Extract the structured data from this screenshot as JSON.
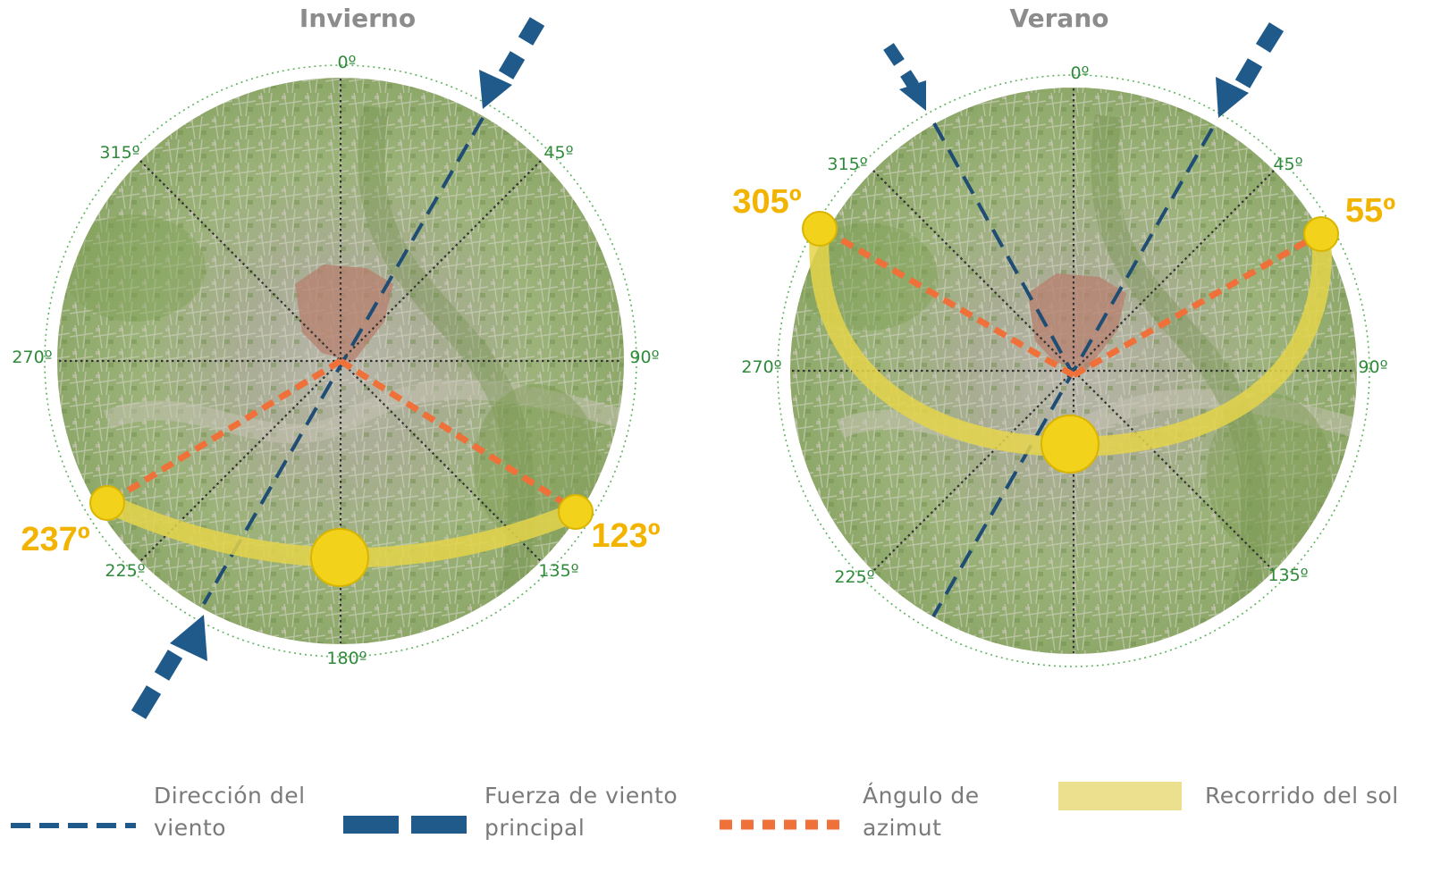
{
  "diagrams": [
    {
      "title": "Invierno",
      "degree_labels": [
        "0º",
        "45º",
        "90º",
        "135º",
        "180º",
        "225º",
        "270º",
        "315º"
      ],
      "sun_angles": {
        "sunrise": "123º",
        "sunset": "237º"
      }
    },
    {
      "title": "Verano",
      "degree_labels": [
        "0º",
        "45º",
        "90º",
        "135º",
        "225º",
        "270º",
        "315º"
      ],
      "sun_angles": {
        "sunrise": "55º",
        "sunset": "305º"
      }
    }
  ],
  "legend": {
    "wind_direction": "Dirección del viento",
    "wind_force": "Fuerza de viento principal",
    "azimuth": "Ángulo de azimut",
    "sun_path": "Recorrido del sol"
  },
  "colors": {
    "wind": "#1f5a8a",
    "azimuth": "#f0703a",
    "sun": "#f2d21a",
    "sun_path": "#e8d86a",
    "degree_text": "#2f8a3a",
    "sun_label": "#f2b400",
    "map_green": "#8fae6a",
    "center_zone": "#b77f6e"
  }
}
